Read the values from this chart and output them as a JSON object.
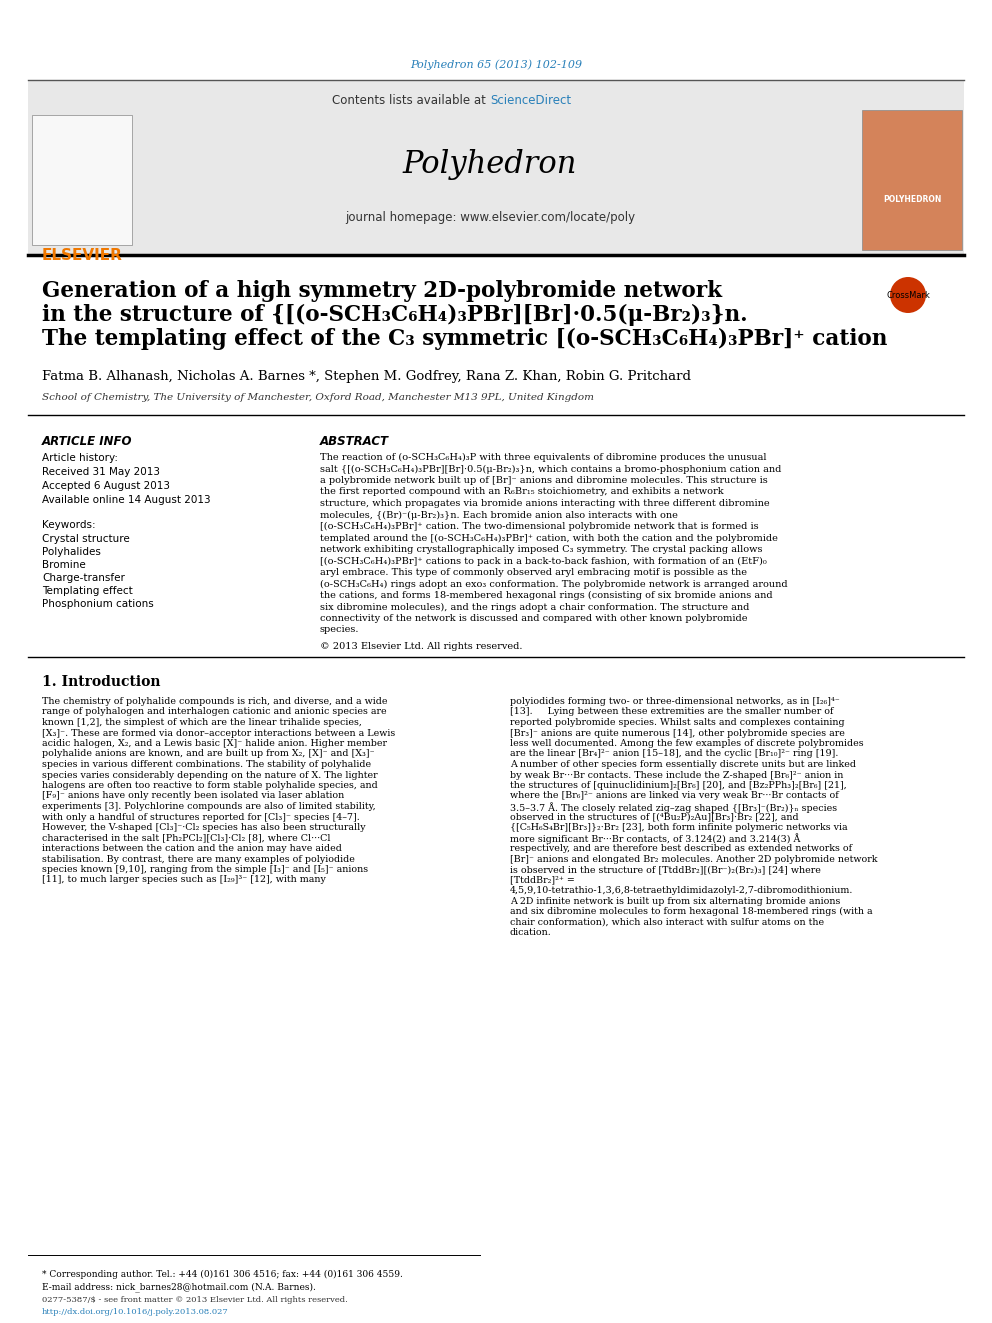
{
  "journal_ref": "Polyhedron 65 (2013) 102-109",
  "journal_ref_color": "#2980b9",
  "header_bg": "#e8e8e8",
  "contents_text": "Contents lists available at ",
  "sciencedirect_text": "ScienceDirect",
  "sciencedirect_color": "#2980b9",
  "journal_name": "Polyhedron",
  "journal_homepage": "journal homepage: www.elsevier.com/locate/poly",
  "title_line1": "Generation of a high symmetry 2D-polybromide network",
  "title_line2": "in the structure of {[(o-SCH₃C₆H₄)₃PBr][Br]·0.5(μ-Br₂)₃}n.",
  "title_line3": "The templating effect of the C₃ symmetric [(o-SCH₃C₆H₄)₃PBr]⁺ cation",
  "authors": "Fatma B. Alhanash, Nicholas A. Barnes *, Stephen M. Godfrey, Rana Z. Khan, Robin G. Pritchard",
  "affiliation": "School of Chemistry, The University of Manchester, Oxford Road, Manchester M13 9PL, United Kingdom",
  "article_info_title": "ARTICLE INFO",
  "article_history_title": "Article history:",
  "received": "Received 31 May 2013",
  "accepted": "Accepted 6 August 2013",
  "available": "Available online 14 August 2013",
  "keywords_title": "Keywords:",
  "keywords": [
    "Crystal structure",
    "Polyhalides",
    "Bromine",
    "Charge-transfer",
    "Templating effect",
    "Phosphonium cations"
  ],
  "abstract_title": "ABSTRACT",
  "abstract_text": "The reaction of (o-SCH₃C₆H₄)₃P with three equivalents of dibromine produces the unusual salt {[(o-SCH₃C₆H₄)₃PBr][Br]·0.5(μ-Br₂)₃}n, which contains a bromo-phosphonium cation and a polybromide network built up of [Br]⁻ anions and dibromine molecules. This structure is the first reported compound with an R₆Br₁₅ stoichiometry, and exhibits a network structure, which propagates via bromide anions interacting with three different dibromine molecules, {(Br)⁻(μ-Br₂)₃}n. Each bromide anion also interacts with one [(o-SCH₃C₆H₄)₃PBr]⁺ cation. The two-dimensional polybromide network that is formed is templated around the [(o-SCH₃C₆H₄)₃PBr]⁺ cation, with both the cation and the polybromide network exhibiting crystallographically imposed C₃ symmetry. The crystal packing allows [(o-SCH₃C₆H₄)₃PBr]⁺ cations to pack in a back-to-back fashion, with formation of an (EtF)₀ aryl embrace. This type of commonly observed aryl embracing motif is possible as the (o-SCH₃C₆H₄) rings adopt an exo₃ conformation. The polybromide network is arranged around the cations, and forms 18-membered hexagonal rings (consisting of six bromide anions and six dibromine molecules), and the rings adopt a chair conformation. The structure and connectivity of the network is discussed and compared with other known polybromide species.",
  "abstract_footer": "© 2013 Elsevier Ltd. All rights reserved.",
  "intro_title": "1. Introduction",
  "intro_text1": "The chemistry of polyhalide compounds is rich, and diverse, and a wide range of polyhalogen and interhalogen cationic and anionic species are known [1,2], the simplest of which are the linear trihalide species, [X₃]⁻. These are formed via donor–acceptor interactions between a Lewis acidic halogen, X₂, and a Lewis basic [X]⁻ halide anion. Higher member polyhalide anions are known, and are built up from X₂, [X]⁻ and [X₃]⁻ species in various different combinations. The stability of polyhalide species varies considerably depending on the nature of X. The lighter halogens are often too reactive to form stable polyhalide species, and [F₉]⁻ anions have only recently been isolated via laser ablation experiments [3]. Polychlorine compounds are also of limited stability, with only a handful of structures reported for [Cl₃]⁻ species [4–7]. However, the V-shaped [Cl₃]⁻·Cl₂ species has also been structurally characterised in the salt [Ph₂PCl₂][Cl₃]·Cl₂ [8], where Cl···Cl interactions between the cation and the anion may have aided stabilisation. By contrast, there are many examples of polyiodide species known [9,10], ranging from the simple [I₃]⁻ and [I₅]⁻ anions [11], to much larger species such as [I₂₉]³⁻ [12], with many",
  "intro_text2": "polyiodides forming two- or three-dimensional networks, as in [I₂₆]⁴⁻ [13].\n    Lying between these extremities are the smaller number of reported polybromide species. Whilst salts and complexes containing [Br₃]⁻ anions are quite numerous [14], other polybromide species are less well documented. Among the few examples of discrete polybromides are the linear [Br₄]²⁻ anion [15–18], and the cyclic [Br₁₀]²⁻ ring [19]. A number of other species form essentially discrete units but are linked by weak Br···Br contacts. These include the Z-shaped [Br₆]²⁻ anion in the structures of [quinuclidinium]₂[Br₆] [20], and [Bz₂PPh₃]₂[Br₆] [21], where the [Br₆]²⁻ anions are linked via very weak Br···Br contacts of 3.5–3.7 Å. The closely related zig–zag shaped {[Br₃]⁻(Br₂)}ₙ species observed in the structures of [(⁴Bu₂P)₂Au][Br₃]·Br₂ [22], and {[C₅H₆S₄Br][Br₃]}₂·Br₂ [23], both form infinite polymeric networks via more significant Br···Br contacts, of 3.124(2) and 3.214(3) Å respectively, and are therefore best described as extended networks of [Br]⁻ anions and elongated Br₂ molecules. Another 2D polybromide network is observed in the structure of [TtddBr₂][(Br⁻)₂(Br₂)₃] [24] where [TtddBr₂]²⁺ = 4,5,9,10-tetrathio-1,3,6,8-tetraethyldimidazolyl-2,7-dibromodithionium. A 2D infinite network is built up from six alternating bromide anions and six dibromine molecules to form hexagonal 18-membered rings (with a chair conformation), which also interact with sulfur atoms on the dication.",
  "footnote_corresponding": "* Corresponding author. Tel.: +44 (0)161 306 4516; fax: +44 (0)161 306 4559.",
  "footnote_email": "E-mail address: nick_barnes28@hotmail.com (N.A. Barnes).",
  "issn_line": "0277-5387/$ - see front matter © 2013 Elsevier Ltd. All rights reserved.",
  "doi_line": "http://dx.doi.org/10.1016/j.poly.2013.08.027",
  "doi_color": "#2980b9",
  "black": "#000000",
  "dark_gray": "#333333",
  "medium_gray": "#555555",
  "light_gray": "#aaaaaa",
  "bg_white": "#ffffff",
  "bg_gray": "#e8e8e8",
  "elsevier_orange": "#f07800",
  "header_line_color": "#000000",
  "separator_line_color": "#000000"
}
